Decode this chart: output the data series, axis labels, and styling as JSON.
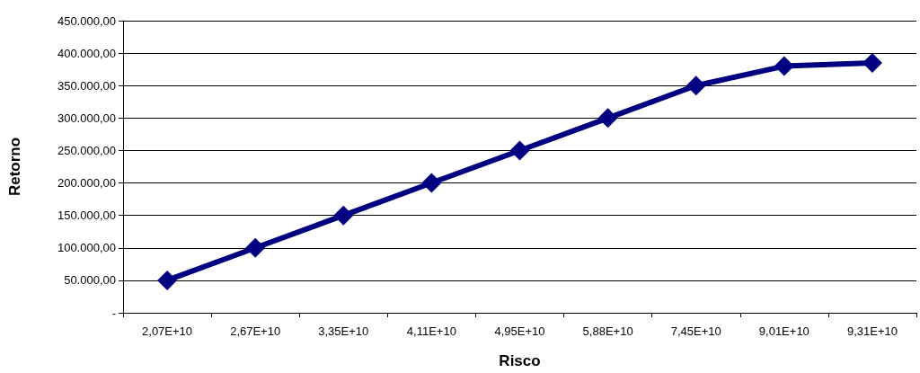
{
  "chart_data": {
    "type": "line",
    "xlabel": "Risco",
    "ylabel": "Retorno",
    "categories": [
      "2,07E+10",
      "2,67E+10",
      "3,35E+10",
      "4,11E+10",
      "4,95E+10",
      "5,88E+10",
      "7,45E+10",
      "9,01E+10",
      "9,31E+10"
    ],
    "series": [
      {
        "color": "#000080",
        "values": [
          50000,
          100000,
          150000,
          200000,
          250000,
          300000,
          350000,
          380000,
          385000
        ]
      }
    ],
    "ylim": [
      0,
      450000
    ],
    "yticks": [
      {
        "value": 0,
        "label": "-"
      },
      {
        "value": 50000,
        "label": "50.000,00"
      },
      {
        "value": 100000,
        "label": "100.000,00"
      },
      {
        "value": 150000,
        "label": "150.000,00"
      },
      {
        "value": 200000,
        "label": "200.000,00"
      },
      {
        "value": 250000,
        "label": "250.000,00"
      },
      {
        "value": 300000,
        "label": "300.000,00"
      },
      {
        "value": 350000,
        "label": "350.000,00"
      },
      {
        "value": 400000,
        "label": "400.000,00"
      },
      {
        "value": 450000,
        "label": "450.000,00"
      }
    ],
    "grid": "y",
    "marker": "diamond",
    "line_style": "solid"
  }
}
